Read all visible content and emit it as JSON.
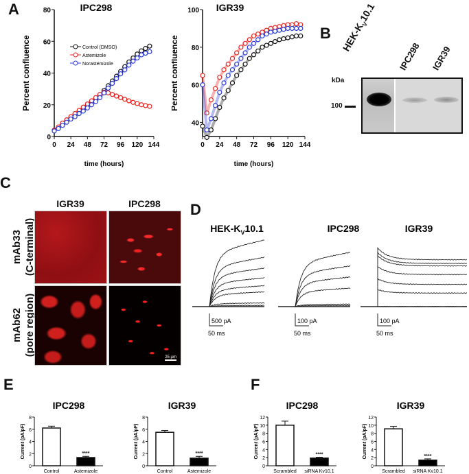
{
  "panels": {
    "A": "A",
    "B": "B",
    "C": "C",
    "D": "D",
    "E": "E",
    "F": "F"
  },
  "chart_data": [
    {
      "id": "A1",
      "type": "scatter",
      "title": "IPC298",
      "xlabel": "time (hours)",
      "ylabel": "Percent confluence",
      "xlim": [
        0,
        144
      ],
      "ylim": [
        0,
        80
      ],
      "xticks": [
        0,
        24,
        48,
        72,
        96,
        120,
        144
      ],
      "yticks": [
        0,
        20,
        40,
        60,
        80
      ],
      "legend_position": "upper-center",
      "x": [
        0,
        6,
        12,
        18,
        24,
        30,
        36,
        42,
        48,
        54,
        60,
        66,
        72,
        78,
        84,
        90,
        96,
        102,
        108,
        114,
        120,
        126,
        132,
        138
      ],
      "series": [
        {
          "name": "Control (DMSO)",
          "color": "#111111",
          "values": [
            4,
            5.5,
            7.5,
            9.5,
            11.5,
            13.5,
            15.5,
            17.5,
            19.5,
            21.5,
            23.5,
            26,
            29,
            32,
            35,
            38,
            41,
            44,
            47,
            49.5,
            52,
            54,
            55.5,
            57
          ]
        },
        {
          "name": "Astemizole",
          "color": "#e8231f",
          "values": [
            4,
            6,
            8.5,
            10.5,
            12.5,
            14.5,
            16.5,
            18.5,
            20.5,
            22.5,
            24.5,
            26.5,
            28,
            27.5,
            26.5,
            25.5,
            24.5,
            23.5,
            22.5,
            21.5,
            20.8,
            20,
            19.5,
            19
          ]
        },
        {
          "name": "Norastemizole",
          "color": "#2b3bd8",
          "values": [
            3.5,
            5,
            7,
            9,
            11,
            12.5,
            14.5,
            16,
            18,
            20,
            22,
            24.5,
            27.5,
            30.5,
            33.5,
            36.5,
            39.5,
            42,
            45,
            47.5,
            49.5,
            51.5,
            52.5,
            53.5
          ]
        }
      ]
    },
    {
      "id": "A2",
      "type": "scatter",
      "title": "IGR39",
      "xlabel": "time (hours)",
      "ylabel": "Percent confluence",
      "xlim": [
        0,
        144
      ],
      "ylim": [
        32.5,
        100
      ],
      "xticks": [
        0,
        24,
        48,
        72,
        96,
        120,
        144
      ],
      "yticks": [
        40,
        60,
        80,
        100
      ],
      "x": [
        0,
        6,
        12,
        18,
        24,
        30,
        36,
        42,
        48,
        54,
        60,
        66,
        72,
        78,
        84,
        90,
        96,
        102,
        108,
        114,
        120,
        126,
        132,
        138
      ],
      "series": [
        {
          "name": "Control (DMSO)",
          "color": "#111111",
          "values": [
            38,
            32,
            36,
            42,
            48,
            53,
            57,
            61,
            65,
            68,
            71,
            74,
            76,
            78,
            80,
            81,
            82,
            83,
            84,
            84.5,
            85,
            85.5,
            86,
            86
          ]
        },
        {
          "name": "Astemizole",
          "color": "#e8231f",
          "values": [
            65,
            45,
            52,
            58,
            64,
            68,
            71,
            74,
            77,
            80,
            82,
            84,
            86,
            87,
            88,
            89,
            90,
            90.5,
            91,
            91.5,
            92,
            92,
            92.5,
            92
          ]
        },
        {
          "name": "Norastemizole",
          "color": "#2b3bd8",
          "values": [
            60,
            36,
            42,
            49,
            56,
            61,
            65,
            68,
            71,
            74,
            77,
            80,
            82,
            84,
            86,
            87,
            88,
            88.5,
            89,
            89.5,
            90,
            90,
            90,
            90
          ]
        }
      ]
    },
    {
      "id": "E1",
      "type": "bar",
      "title": "IPC298",
      "ylabel": "Current (pA/pF)",
      "ylim": [
        0,
        8
      ],
      "yticks": [
        0,
        2,
        4,
        6,
        8
      ],
      "categories": [
        "Control",
        "Astemizole"
      ],
      "values": [
        6.2,
        1.35
      ],
      "errors": [
        0.3,
        0.2
      ],
      "fills": [
        "#ffffff",
        "#000000"
      ],
      "annotations": [
        "",
        "****"
      ]
    },
    {
      "id": "E2",
      "type": "bar",
      "title": "IGR39",
      "ylabel": "Current (pA/pF)",
      "ylim": [
        0,
        8
      ],
      "yticks": [
        0,
        2,
        4,
        6,
        8
      ],
      "categories": [
        "Control",
        "Astemizole"
      ],
      "values": [
        5.5,
        1.25
      ],
      "errors": [
        0.3,
        0.3
      ],
      "fills": [
        "#ffffff",
        "#000000"
      ],
      "annotations": [
        "",
        "****"
      ]
    },
    {
      "id": "F1",
      "type": "bar",
      "title": "IPC298",
      "ylabel": "Current (pA/pF)",
      "ylim": [
        0,
        12
      ],
      "yticks": [
        0,
        2,
        4,
        6,
        8,
        10,
        12
      ],
      "categories": [
        "Scrambled",
        "siRNA Kv10.1"
      ],
      "values": [
        10,
        1.9
      ],
      "errors": [
        1.0,
        0.2
      ],
      "fills": [
        "#ffffff",
        "#000000"
      ],
      "annotations": [
        "",
        "****"
      ]
    },
    {
      "id": "F2",
      "type": "bar",
      "title": "IGR39",
      "ylabel": "Current (pA/pF)",
      "ylim": [
        0,
        12
      ],
      "yticks": [
        0,
        2,
        4,
        6,
        8,
        10,
        12
      ],
      "categories": [
        "Scrambled",
        "siRNA Kv10.1"
      ],
      "values": [
        9.1,
        1.4
      ],
      "errors": [
        0.6,
        0.3
      ],
      "fills": [
        "#ffffff",
        "#000000"
      ],
      "annotations": [
        "",
        "****"
      ]
    }
  ],
  "blot": {
    "lanes": [
      "HEK-K",
      "V",
      "10.1",
      "IPC298",
      "IGR39"
    ],
    "kda_label": "kDa",
    "marker": "100"
  },
  "immuno": {
    "columns": [
      "IGR39",
      "IPC298"
    ],
    "rows": [
      {
        "line1": "mAb33",
        "line2": "(C-terminal)"
      },
      {
        "line1": "mAb62",
        "line2": "(pore region)"
      }
    ],
    "scalebar": "25 µm"
  },
  "traces": [
    {
      "title_main": "HEK-K",
      "title_sub": "V",
      "title_end": "10.1",
      "scale_current": "500 pA",
      "scale_time": "50 ms",
      "amplitudes_pA": [
        2700,
        2000,
        1560,
        1170,
        850,
        600,
        150,
        50
      ],
      "scale_pA": 500,
      "decay": false
    },
    {
      "title_main": "IPC298",
      "title_sub": "",
      "title_end": "",
      "scale_current": "100 pA",
      "scale_time": "50 ms",
      "amplitudes_pA": [
        440,
        330,
        240,
        150,
        20,
        10
      ],
      "scale_pA": 100,
      "decay": false
    },
    {
      "title_main": "IGR39",
      "title_sub": "",
      "title_end": "",
      "scale_current": "100 pA",
      "scale_time": "50 ms",
      "amplitudes_pA": [
        380,
        350,
        330,
        260,
        180,
        110,
        0
      ],
      "scale_pA": 100,
      "decay": true
    }
  ]
}
